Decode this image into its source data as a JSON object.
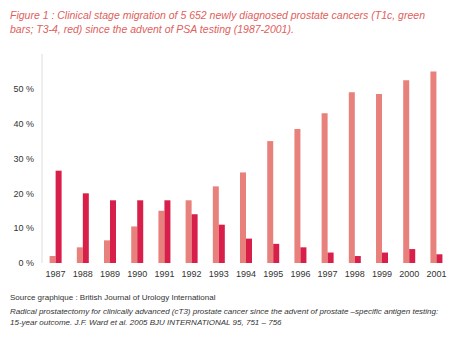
{
  "chart_data": {
    "type": "bar",
    "title": "Figure 1 : Clinical stage migration of 5 652 newly diagnosed prostate cancers (T1c, green bars; T3-4, red) since the advent of PSA testing (1987-2001).",
    "categories": [
      "1987",
      "1988",
      "1989",
      "1990",
      "1991",
      "1992",
      "1993",
      "1994",
      "1995",
      "1996",
      "1997",
      "1998",
      "1999",
      "2000",
      "2001"
    ],
    "series": [
      {
        "name": "T1c",
        "color": "#e8807c",
        "values": [
          2,
          4.5,
          6.5,
          10.5,
          15,
          18,
          22,
          26,
          35,
          38.5,
          43,
          49,
          48.5,
          52.5,
          55
        ]
      },
      {
        "name": "T3-4",
        "color": "#d81f4a",
        "values": [
          26.5,
          20,
          18,
          18,
          18,
          14,
          11,
          7,
          5.5,
          4.5,
          3,
          2,
          3,
          4,
          2.5
        ]
      }
    ],
    "ylim": [
      0,
      60
    ],
    "yticks": [
      {
        "value": 0,
        "label": "0 %"
      },
      {
        "value": 10,
        "label": "10 %"
      },
      {
        "value": 20,
        "label": "20 %"
      },
      {
        "value": 30,
        "label": "30 %"
      },
      {
        "value": 40,
        "label": "40 %"
      },
      {
        "value": 50,
        "label": "50 %"
      }
    ],
    "grid": false,
    "source": "Source graphique : British Journal of Urology International",
    "reference": [
      "Radical prostatectomy for clinically advanced (cT3) prostate cancer since the advent of prostate –specific antigen testing:",
      "15-year outcome. J.F. Ward et al. 2005 BJU INTERNATIONAL 95, 751 – 756"
    ]
  }
}
